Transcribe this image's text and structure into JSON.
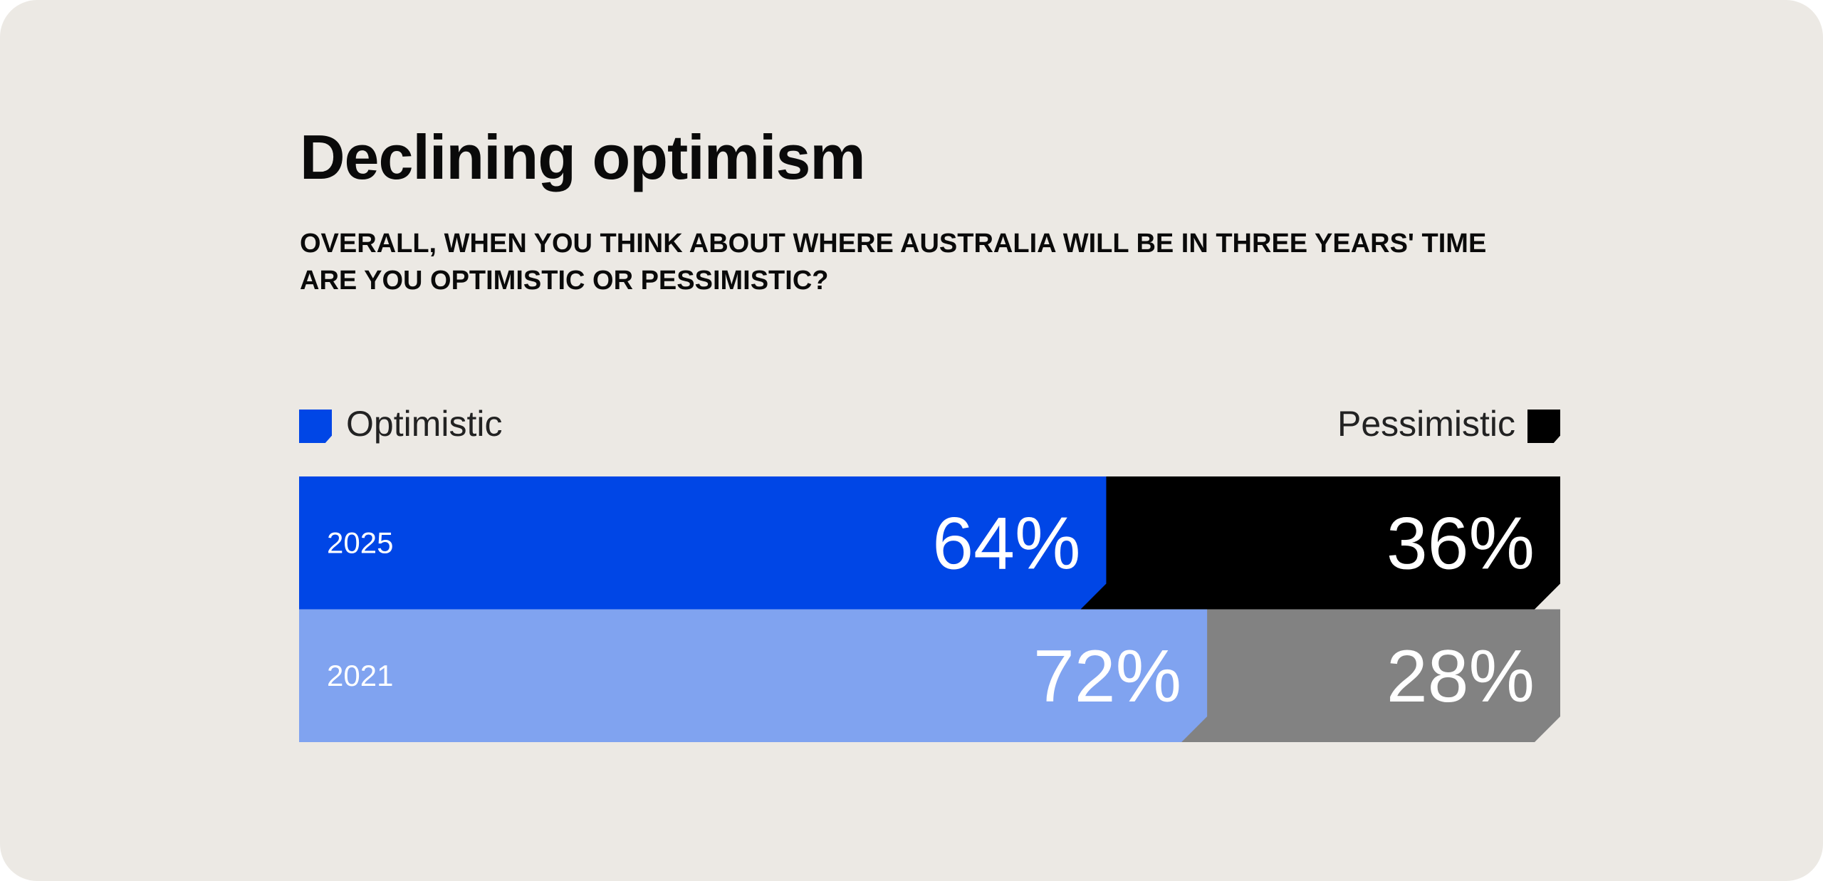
{
  "chart_data": {
    "type": "bar",
    "orientation": "horizontal",
    "stacked": true,
    "title": "Declining optimism",
    "subtitle": "Overall, when you think about where Australia will be in three years' time are you optimistic or pessimistic?",
    "categories": [
      "2025",
      "2021"
    ],
    "series": [
      {
        "name": "Optimistic",
        "values": [
          64,
          72
        ],
        "colors": [
          "#0046E6",
          "#80A3F0"
        ]
      },
      {
        "name": "Pessimistic",
        "values": [
          36,
          28
        ],
        "colors": [
          "#000000",
          "#828282"
        ]
      }
    ],
    "data_labels": [
      [
        "64%",
        "36%"
      ],
      [
        "72%",
        "28%"
      ]
    ],
    "xlim": [
      0,
      100
    ],
    "grid": false,
    "legend": [
      {
        "label": "Optimistic",
        "color": "#0046E6",
        "placement": "top-left"
      },
      {
        "label": "Pessimistic",
        "color": "#000000",
        "placement": "top-right"
      }
    ]
  },
  "background_color": "#ECE9E4"
}
